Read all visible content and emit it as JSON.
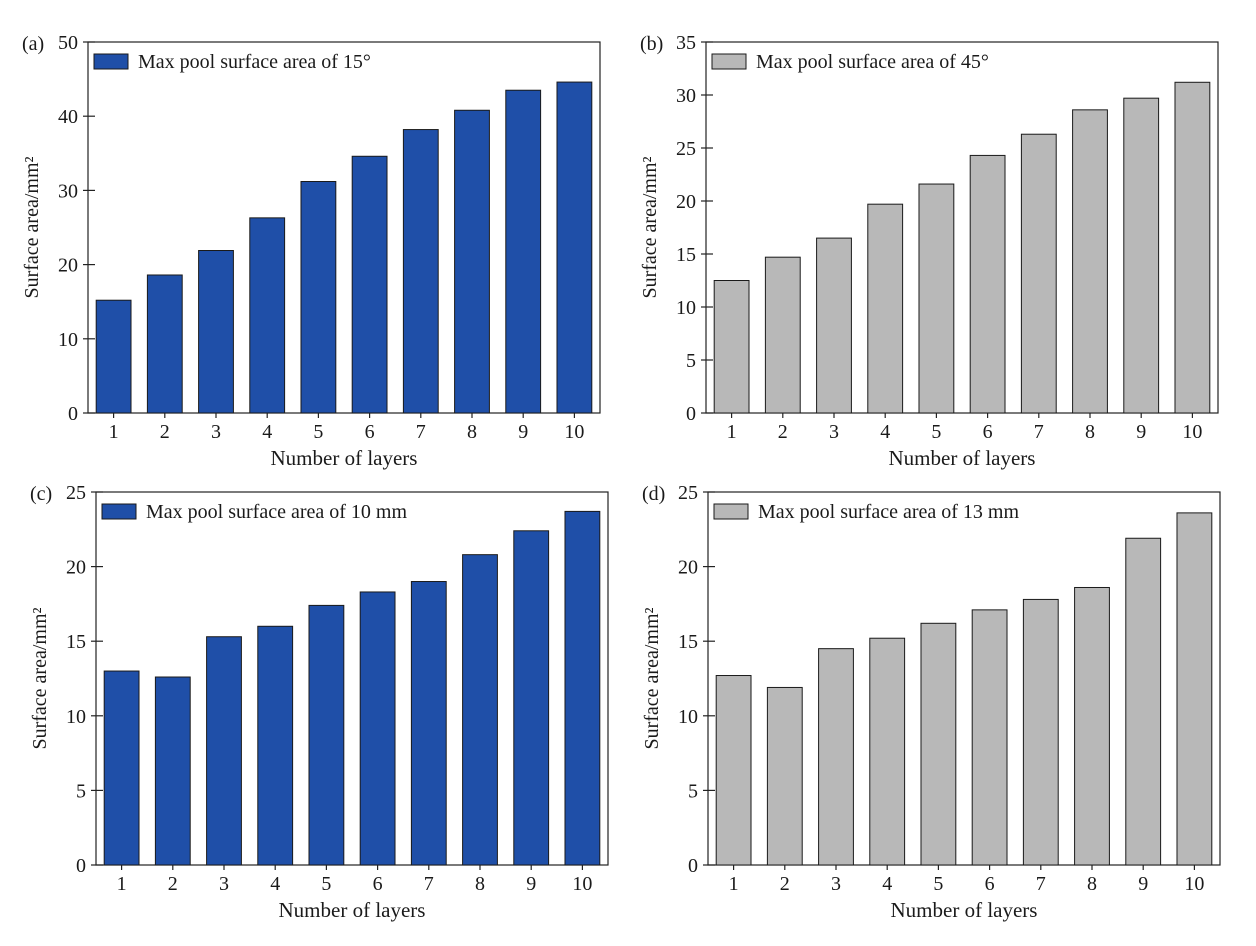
{
  "chart_data": [
    {
      "type": "bar",
      "panel_label": "(a)",
      "categories": [
        "1",
        "2",
        "3",
        "4",
        "5",
        "6",
        "7",
        "8",
        "9",
        "10"
      ],
      "series": [
        {
          "name": "Max pool surface area of 15°",
          "values": [
            15.2,
            18.6,
            21.9,
            26.3,
            31.2,
            34.6,
            38.2,
            40.8,
            43.5,
            44.6
          ]
        }
      ],
      "xlabel": "Number of layers",
      "ylabel": "Surface area/mm²",
      "ylim": [
        0,
        50
      ],
      "yticks": [
        0,
        10,
        20,
        30,
        40,
        50
      ],
      "bar_color": "#1f4fa8",
      "legend_position": "top-left",
      "grid": false
    },
    {
      "type": "bar",
      "panel_label": "(b)",
      "categories": [
        "1",
        "2",
        "3",
        "4",
        "5",
        "6",
        "7",
        "8",
        "9",
        "10"
      ],
      "series": [
        {
          "name": "Max pool surface area of 45°",
          "values": [
            12.5,
            14.7,
            16.5,
            19.7,
            21.6,
            24.3,
            26.3,
            28.6,
            29.7,
            31.2
          ]
        }
      ],
      "xlabel": "Number of layers",
      "ylabel": "Surface area/mm²",
      "ylim": [
        0,
        35
      ],
      "yticks": [
        0,
        5,
        10,
        15,
        20,
        25,
        30,
        35
      ],
      "bar_color": "#b8b8b8",
      "legend_position": "top-left",
      "grid": false
    },
    {
      "type": "bar",
      "panel_label": "(c)",
      "categories": [
        "1",
        "2",
        "3",
        "4",
        "5",
        "6",
        "7",
        "8",
        "9",
        "10"
      ],
      "series": [
        {
          "name": "Max pool surface area of 10 mm",
          "values": [
            13.0,
            12.6,
            15.3,
            16.0,
            17.4,
            18.3,
            19.0,
            20.8,
            22.4,
            23.7
          ]
        }
      ],
      "xlabel": "Number of layers",
      "ylabel": "Surface area/mm²",
      "ylim": [
        0,
        25
      ],
      "yticks": [
        0,
        5,
        10,
        15,
        20,
        25
      ],
      "bar_color": "#1f4fa8",
      "legend_position": "top-left",
      "grid": false
    },
    {
      "type": "bar",
      "panel_label": "(d)",
      "categories": [
        "1",
        "2",
        "3",
        "4",
        "5",
        "6",
        "7",
        "8",
        "9",
        "10"
      ],
      "series": [
        {
          "name": "Max pool surface area of 13 mm",
          "values": [
            12.7,
            11.9,
            14.5,
            15.2,
            16.2,
            17.1,
            17.8,
            18.6,
            21.9,
            23.6
          ]
        }
      ],
      "xlabel": "Number of layers",
      "ylabel": "Surface area/mm²",
      "ylim": [
        0,
        25
      ],
      "yticks": [
        0,
        5,
        10,
        15,
        20,
        25
      ],
      "bar_color": "#b8b8b8",
      "legend_position": "top-left",
      "grid": false
    }
  ]
}
